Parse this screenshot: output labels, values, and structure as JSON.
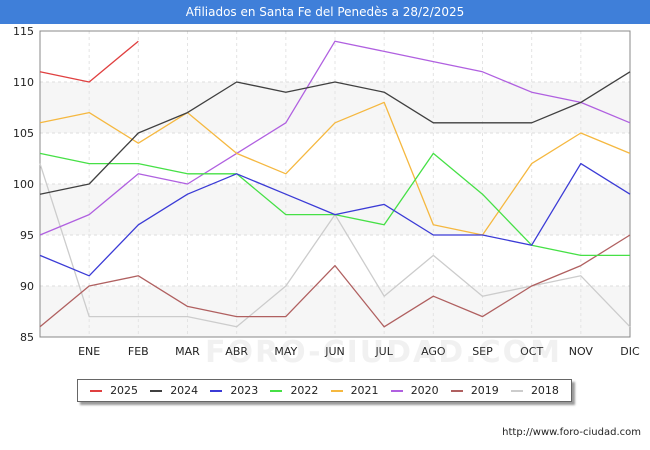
{
  "header": {
    "title": "Afiliados en Santa Fe del Penedès a 28/2/2025"
  },
  "footer": {
    "url": "http://www.foro-ciudad.com"
  },
  "watermark": {
    "text": "FORO-CIUDAD.COM"
  },
  "chart_data": {
    "type": "line",
    "title": "Afiliados en Santa Fe del Penedès a 28/2/2025",
    "categories": [
      "",
      "ENE",
      "FEB",
      "MAR",
      "ABR",
      "MAY",
      "JUN",
      "JUL",
      "AGO",
      "SEP",
      "OCT",
      "NOV",
      "DIC"
    ],
    "ylim": [
      85,
      115
    ],
    "yticks": [
      85,
      90,
      95,
      100,
      105,
      110,
      115
    ],
    "grid": true,
    "legend_position": "bottom",
    "series": [
      {
        "name": "2025",
        "color": "#e04040",
        "values": [
          111,
          110,
          114,
          null,
          null,
          null,
          null,
          null,
          null,
          null,
          null,
          null,
          null
        ]
      },
      {
        "name": "2024",
        "color": "#404040",
        "values": [
          99,
          100,
          105,
          107,
          110,
          109,
          110,
          109,
          106,
          106,
          106,
          108,
          111
        ]
      },
      {
        "name": "2023",
        "color": "#3b3bd6",
        "values": [
          93,
          91,
          96,
          99,
          101,
          99,
          97,
          98,
          95,
          95,
          94,
          102,
          99
        ]
      },
      {
        "name": "2022",
        "color": "#46e046",
        "values": [
          103,
          102,
          102,
          101,
          101,
          97,
          97,
          96,
          103,
          99,
          94,
          93,
          93
        ]
      },
      {
        "name": "2021",
        "color": "#f5b840",
        "values": [
          106,
          107,
          104,
          107,
          103,
          101,
          106,
          108,
          96,
          95,
          102,
          105,
          103
        ]
      },
      {
        "name": "2020",
        "color": "#b060e0",
        "values": [
          95,
          97,
          101,
          100,
          103,
          106,
          114,
          113,
          112,
          111,
          109,
          108,
          106
        ]
      },
      {
        "name": "2019",
        "color": "#b06060",
        "values": [
          86,
          90,
          91,
          88,
          87,
          87,
          92,
          86,
          89,
          87,
          90,
          92,
          95
        ]
      },
      {
        "name": "2018",
        "color": "#cccccc",
        "values": [
          102,
          87,
          87,
          87,
          86,
          90,
          97,
          89,
          93,
          89,
          90,
          91,
          86
        ]
      }
    ]
  }
}
